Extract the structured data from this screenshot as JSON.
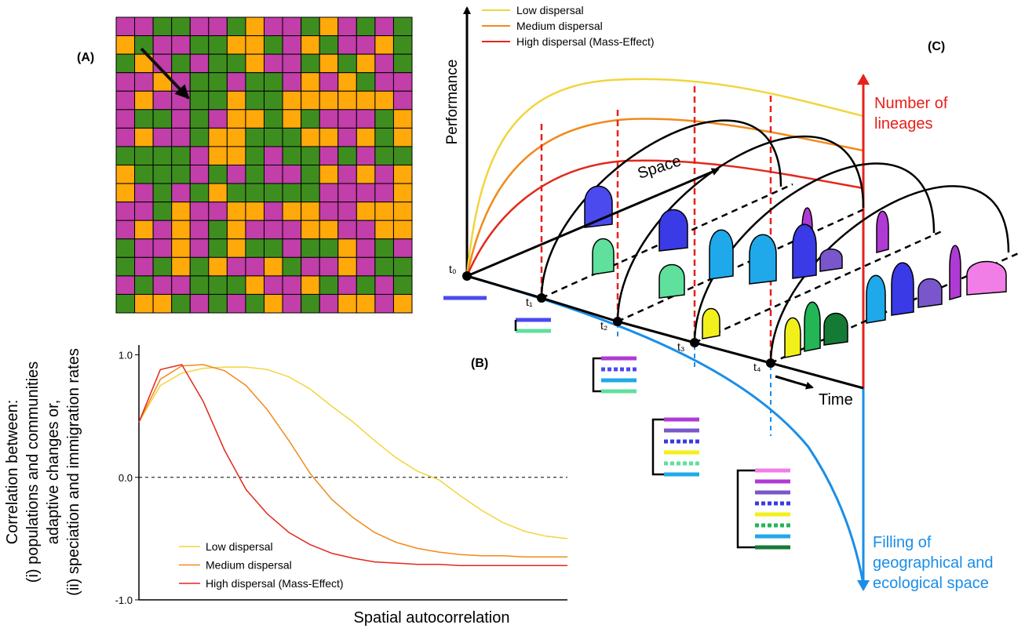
{
  "panel_labels": [
    "(A)",
    "(B)",
    "(C)"
  ],
  "chart_data": {
    "type": "line",
    "xlabel": "Spatial autocorrelation",
    "ylabel": [
      "Correlation between:",
      "(i) populations and communities",
      "adaptive changes or,",
      "(ii) speciation and immigration rates"
    ],
    "x": [
      0,
      0.05,
      0.1,
      0.15,
      0.2,
      0.25,
      0.3,
      0.35,
      0.4,
      0.45,
      0.5,
      0.55,
      0.6,
      0.65,
      0.7,
      0.75,
      0.8,
      0.85,
      0.9,
      0.95,
      1
    ],
    "xlim": [
      0,
      1
    ],
    "ylim": [
      -1,
      1.08
    ],
    "yticks": [
      {
        "value": 1,
        "label": "1.0"
      },
      {
        "value": 0,
        "label": "0.0"
      },
      {
        "value": -1,
        "label": "-1.0"
      }
    ],
    "legend": "lower left",
    "series": [
      {
        "name": "Low dispersal",
        "color": "#f2d53c",
        "values": [
          0.45,
          0.75,
          0.85,
          0.89,
          0.9,
          0.9,
          0.88,
          0.82,
          0.72,
          0.58,
          0.45,
          0.3,
          0.16,
          0.05,
          -0.02,
          -0.15,
          -0.27,
          -0.37,
          -0.44,
          -0.48,
          -0.5
        ]
      },
      {
        "name": "Medium dispersal",
        "color": "#f08a1c",
        "values": [
          0.45,
          0.8,
          0.91,
          0.92,
          0.87,
          0.75,
          0.55,
          0.3,
          0.03,
          -0.18,
          -0.33,
          -0.45,
          -0.53,
          -0.58,
          -0.61,
          -0.63,
          -0.64,
          -0.64,
          -0.65,
          -0.65,
          -0.65
        ]
      },
      {
        "name": "High dispersal (Mass-Effect)",
        "color": "#e3281c",
        "values": [
          0.45,
          0.88,
          0.92,
          0.62,
          0.22,
          -0.1,
          -0.3,
          -0.45,
          -0.55,
          -0.62,
          -0.66,
          -0.69,
          -0.7,
          -0.71,
          -0.71,
          -0.72,
          -0.72,
          -0.72,
          -0.72,
          -0.72,
          -0.72
        ]
      }
    ]
  },
  "diagram": {
    "performance": "Performance",
    "legend": [
      {
        "name": "Low dispersal",
        "color": "#f2d53c"
      },
      {
        "name": "Medium dispersal",
        "color": "#f08a1c"
      },
      {
        "name": "High dispersal (Mass-Effect)",
        "color": "#e3281c"
      }
    ],
    "lineages": [
      "Number of",
      "lineages"
    ],
    "filling": [
      "Filling of",
      "geographical and",
      "ecological space"
    ],
    "space": "Space",
    "time": "Time",
    "t_labels": [
      "t₀",
      "t₁",
      "t₂",
      "t₃",
      "t₄"
    ]
  }
}
